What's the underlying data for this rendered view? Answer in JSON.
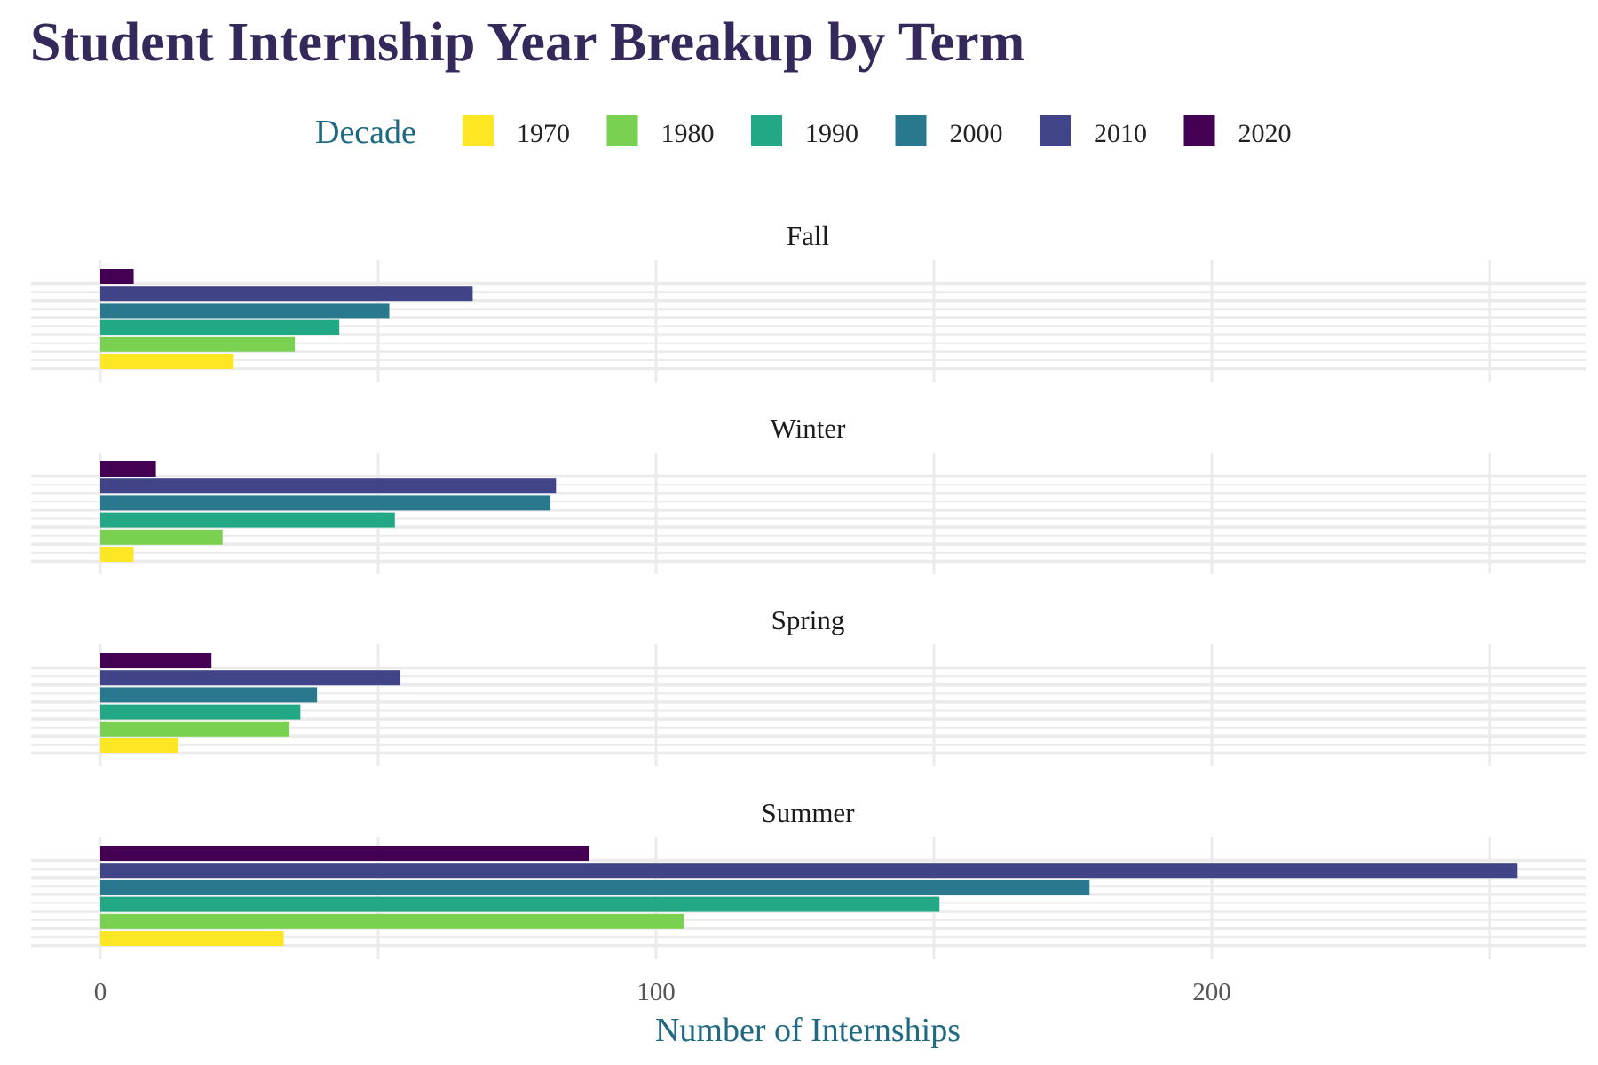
{
  "chart_data": {
    "type": "bar",
    "orientation": "horizontal",
    "title": "Student Internship Year Breakup by Term",
    "xlabel": "Number of Internships",
    "ylabel": "",
    "xlim": [
      -12.5,
      267
    ],
    "x_ticks": [
      "0",
      "100",
      "200"
    ],
    "x_tick_values": [
      0,
      100,
      200
    ],
    "grid": true,
    "legend": {
      "title": "Decade",
      "position": "top"
    },
    "series": [
      {
        "name": "1970",
        "color": "#fde725",
        "values": [
          24,
          6,
          14,
          33
        ]
      },
      {
        "name": "1980",
        "color": "#7ad151",
        "values": [
          35,
          22,
          34,
          105
        ]
      },
      {
        "name": "1990",
        "color": "#22a884",
        "values": [
          43,
          53,
          36,
          151
        ]
      },
      {
        "name": "2000",
        "color": "#2a788e",
        "values": [
          52,
          81,
          39,
          178
        ]
      },
      {
        "name": "2010",
        "color": "#414487",
        "values": [
          67,
          82,
          54,
          255
        ]
      },
      {
        "name": "2020",
        "color": "#440154",
        "values": [
          6,
          10,
          20,
          88
        ]
      }
    ],
    "panels": [
      "Fall",
      "Winter",
      "Spring",
      "Summer"
    ]
  }
}
